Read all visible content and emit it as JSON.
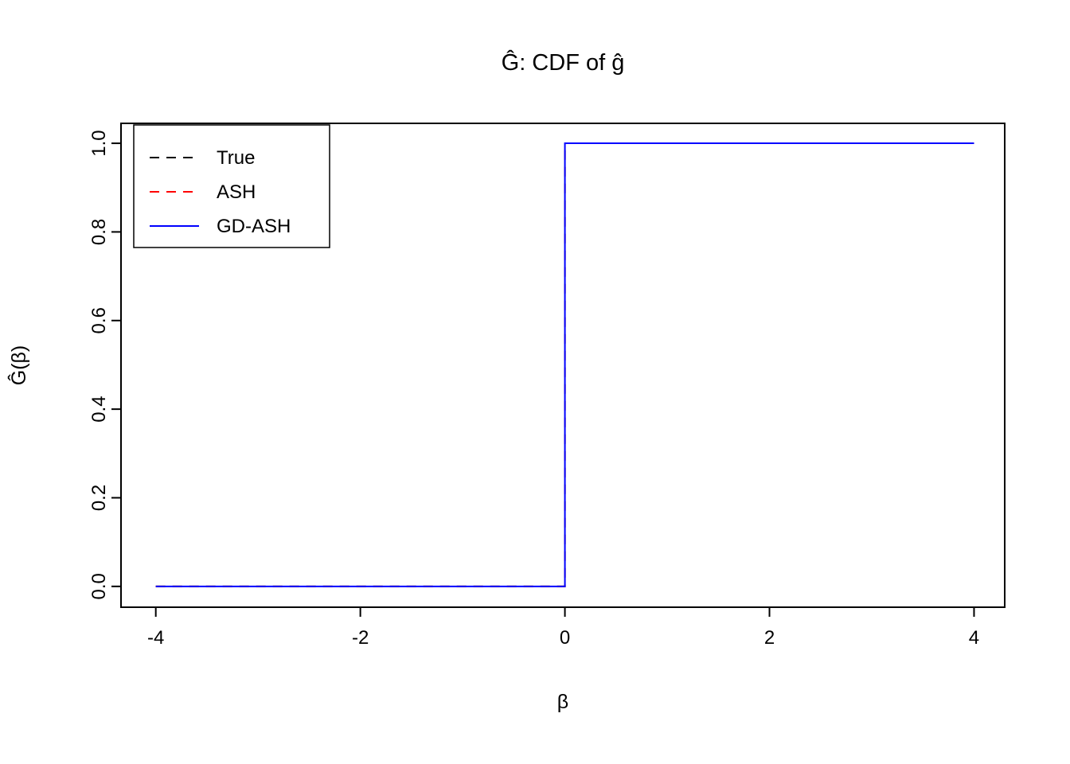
{
  "figure": {
    "background": "#ffffff",
    "frame_color": "#000000"
  },
  "chart_data": {
    "type": "line",
    "title": "Ĝ: CDF of ĝ",
    "xlabel": "β",
    "ylabel": "Ĝ(β)",
    "xlim": [
      -4.34,
      4.3
    ],
    "ylim": [
      -0.047,
      1.045
    ],
    "xticks": [
      -4,
      -2,
      0,
      2,
      4
    ],
    "yticks": [
      "0.0",
      "0.2",
      "0.4",
      "0.6",
      "0.8",
      "1.0"
    ],
    "grid": false,
    "legend_position": "top-left",
    "legend_entries": [
      "True",
      "ASH",
      "GD-ASH"
    ],
    "series": [
      {
        "name": "True",
        "color": "#000000",
        "dash": "dashed",
        "x": [
          -4,
          0,
          0,
          4
        ],
        "y": [
          0,
          0,
          1,
          1
        ]
      },
      {
        "name": "ASH",
        "color": "#ff0000",
        "dash": "dashed",
        "x": [
          -4,
          0,
          0,
          4
        ],
        "y": [
          0,
          0,
          1,
          1
        ]
      },
      {
        "name": "GD-ASH",
        "color": "#0000ff",
        "dash": "solid",
        "x": [
          -4,
          0,
          0,
          4
        ],
        "y": [
          0,
          0,
          1,
          1
        ]
      }
    ]
  }
}
